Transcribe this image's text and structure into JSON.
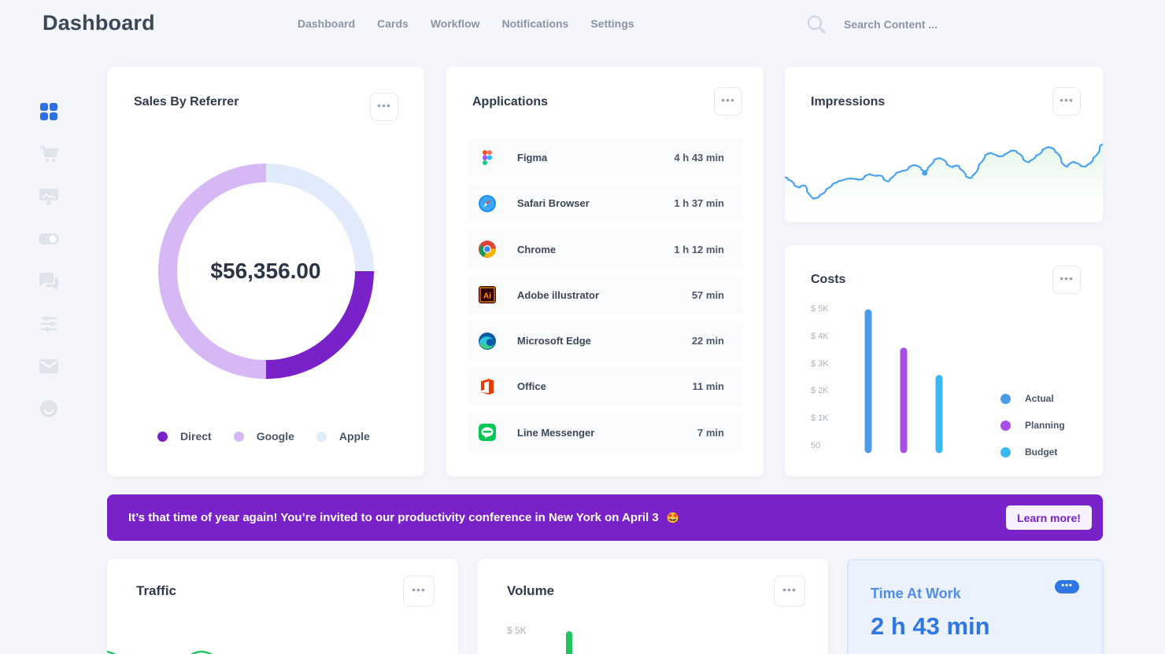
{
  "header": {
    "brand": "Dashboard",
    "nav": [
      "Dashboard",
      "Cards",
      "Workflow",
      "Notifications",
      "Settings"
    ],
    "search_placeholder": "Search Content ..."
  },
  "sidebar": {
    "icons": [
      "grid-icon",
      "cart-icon",
      "monitor-icon",
      "toggle-icon",
      "chat-icon",
      "sliders-icon",
      "mail-icon",
      "smile-icon"
    ],
    "active_color": "#2f6fe4",
    "inactive_color": "#dfe3ea"
  },
  "sales": {
    "title": "Sales By Referrer",
    "total": "$56,356.00",
    "legend": [
      {
        "label": "Direct",
        "color": "#7a22c9"
      },
      {
        "label": "Google",
        "color": "#d6b8f5"
      },
      {
        "label": "Apple",
        "color": "#e1ebfb"
      }
    ],
    "chart_data": {
      "type": "pie",
      "categories": [
        "Direct",
        "Google",
        "Apple"
      ],
      "values": [
        25,
        50,
        25
      ]
    }
  },
  "applications": {
    "title": "Applications",
    "items": [
      {
        "name": "Figma",
        "time": "4 h 43 min",
        "icon": "figma-icon"
      },
      {
        "name": "Safari Browser",
        "time": "1 h 37 min",
        "icon": "safari-icon"
      },
      {
        "name": "Chrome",
        "time": "1 h 12 min",
        "icon": "chrome-icon"
      },
      {
        "name": "Adobe illustrator",
        "time": "57 min",
        "icon": "illustrator-icon"
      },
      {
        "name": "Microsoft Edge",
        "time": "22 min",
        "icon": "edge-icon"
      },
      {
        "name": "Office",
        "time": "11 min",
        "icon": "office-icon"
      },
      {
        "name": "Line Messenger",
        "time": "7 min",
        "icon": "line-icon"
      }
    ]
  },
  "impressions": {
    "title": "Impressions",
    "chart_data": {
      "type": "line",
      "values": [
        55,
        50,
        42,
        48,
        30,
        32,
        38,
        45,
        50,
        52,
        54,
        53,
        52,
        60,
        56,
        58,
        48,
        58,
        62,
        63,
        70,
        67,
        60,
        72,
        78,
        74,
        65,
        70,
        60,
        52,
        62,
        76,
        84,
        80,
        78,
        84,
        86,
        80,
        70,
        77,
        82,
        90,
        88,
        80,
        64,
        74,
        70,
        66,
        72,
        82,
        92
      ],
      "highlight_index": 22,
      "line_color": "#4aa3ef",
      "fill_color": "#e5f6ea"
    }
  },
  "costs": {
    "title": "Costs",
    "y_ticks": [
      "$ 5K",
      "$ 4K",
      "$ 3K",
      "$ 2K",
      "$ 1K",
      "50"
    ],
    "legend": [
      {
        "label": "Actual",
        "color": "#4d9be8"
      },
      {
        "label": "Planning",
        "color": "#a94fe8"
      },
      {
        "label": "Budget",
        "color": "#3bb7f0"
      }
    ],
    "chart_data": {
      "type": "bar",
      "categories": [
        "Actual",
        "Planning",
        "Budget"
      ],
      "values": [
        5.0,
        3.6,
        2.6
      ],
      "ymax": 5.0
    }
  },
  "banner": {
    "text": "It’s that time of year again! You’re invited to our productivity conference in New York on April 3",
    "emoji": "🤩",
    "button": "Learn more!"
  },
  "traffic": {
    "title": "Traffic"
  },
  "volume": {
    "title": "Volume",
    "y_tick": "$ 5K"
  },
  "time_at_work": {
    "title": "Time At Work",
    "value": "2 h 43 min"
  }
}
